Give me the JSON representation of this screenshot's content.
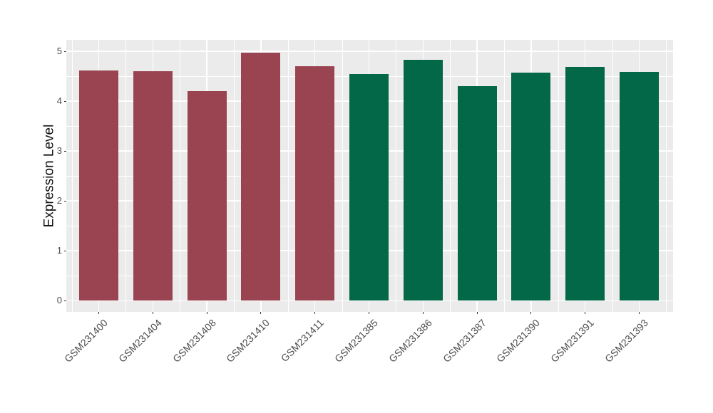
{
  "chart_data": {
    "type": "bar",
    "title": "",
    "xlabel": "",
    "ylabel": "Expression Level",
    "categories": [
      "GSM231400",
      "GSM231404",
      "GSM231408",
      "GSM231410",
      "GSM231411",
      "GSM231385",
      "GSM231386",
      "GSM231387",
      "GSM231390",
      "GSM231391",
      "GSM231393"
    ],
    "values": [
      4.61,
      4.6,
      4.2,
      4.97,
      4.7,
      4.55,
      4.83,
      4.3,
      4.57,
      4.69,
      4.59
    ],
    "groups": [
      "group1",
      "group1",
      "group1",
      "group1",
      "group1",
      "group2",
      "group2",
      "group2",
      "group2",
      "group2",
      "group2"
    ],
    "group_colors": {
      "group1": "#9A4451",
      "group2": "#026847"
    },
    "yticks": [
      "0",
      "1",
      "2",
      "3",
      "4",
      "5"
    ],
    "ylim": [
      -0.25,
      5.23
    ],
    "x_tick_rotation_deg": 45,
    "legend": "none",
    "grid": "major and minor, white lines on gray panel",
    "panel_background": "#EBEBEB",
    "gridline_color": "#FFFFFF",
    "tick_label_color": "#4D4D4D",
    "axis_title_color": "#111111",
    "outer_background": "#FFFFFF"
  }
}
